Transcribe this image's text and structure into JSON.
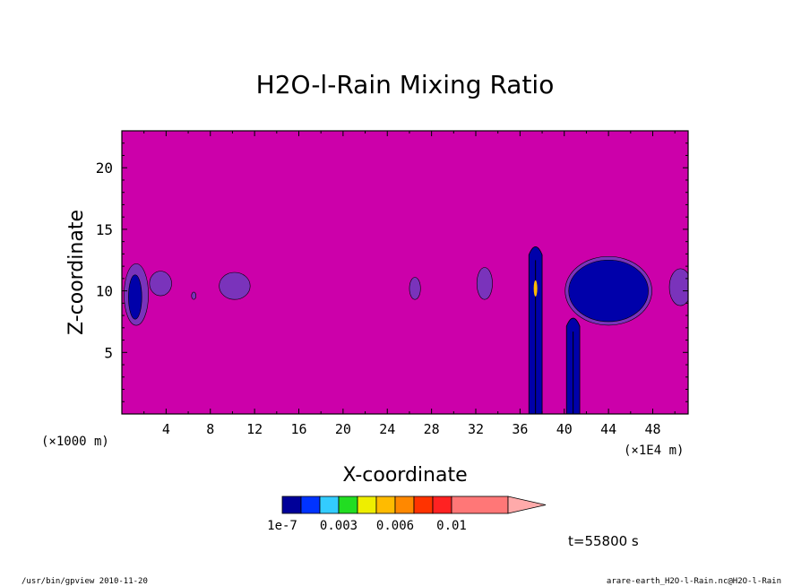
{
  "chart_data": {
    "type": "heatmap",
    "title": "H2O-l-Rain Mixing Ratio",
    "xlabel": "X-coordinate",
    "ylabel": "Z-coordinate",
    "x_unit_left": "(×1000 m)",
    "x_unit_right": "(×1E4 m)",
    "x_ticks": [
      4,
      8,
      12,
      16,
      20,
      24,
      28,
      32,
      36,
      40,
      44,
      48
    ],
    "x_ticks_labels": [
      "4",
      "8",
      "12",
      "16",
      "20",
      "24",
      "28",
      "32",
      "36",
      "40",
      "44",
      "48"
    ],
    "y_ticks": [
      5,
      10,
      15,
      20
    ],
    "y_ticks_labels": [
      "5",
      "10",
      "15",
      "20"
    ],
    "xlim": [
      0,
      51.2
    ],
    "ylim": [
      0,
      23
    ],
    "background_color": "#cc00aa",
    "colorbar": {
      "levels": [
        1e-07,
        0.001,
        0.002,
        0.003,
        0.004,
        0.005,
        0.006,
        0.007,
        0.008,
        0.01
      ],
      "colors": [
        "#000099",
        "#0033ff",
        "#33ccff",
        "#22dd22",
        "#eeee00",
        "#ffbb00",
        "#ff8800",
        "#ff3300",
        "#ff2222",
        "#ff7777",
        "#ffaaaa"
      ],
      "labels": [
        "1e-7",
        "0.003",
        "0.006",
        "0.01"
      ],
      "label_values": [
        1e-07,
        0.003,
        0.006,
        0.01
      ],
      "extend": "max"
    },
    "features": [
      {
        "x": 1.3,
        "z": 9.7,
        "rx": 1.1,
        "rz": 2.5,
        "level": "1e-7",
        "color": "#7a33bb"
      },
      {
        "x": 1.2,
        "z": 9.5,
        "rx": 0.6,
        "rz": 1.8,
        "level": "0.001",
        "color": "#0000aa"
      },
      {
        "x": 3.5,
        "z": 10.6,
        "rx": 1.0,
        "rz": 1.0,
        "level": "1e-7",
        "color": "#7a33bb"
      },
      {
        "x": 6.5,
        "z": 9.6,
        "rx": 0.2,
        "rz": 0.3,
        "level": "1e-7",
        "color": "#7a33bb"
      },
      {
        "x": 10.2,
        "z": 10.4,
        "rx": 1.4,
        "rz": 1.1,
        "level": "1e-7",
        "color": "#7a33bb"
      },
      {
        "x": 26.5,
        "z": 10.2,
        "rx": 0.5,
        "rz": 0.9,
        "level": "1e-7",
        "color": "#7a33bb"
      },
      {
        "x": 32.8,
        "z": 10.6,
        "rx": 0.7,
        "rz": 1.3,
        "level": "1e-7",
        "color": "#7a33bb"
      },
      {
        "x": 50.5,
        "z": 10.3,
        "rx": 1.0,
        "rz": 1.5,
        "level": "1e-7",
        "color": "#7a33bb"
      }
    ],
    "columns": [
      {
        "x": 37.4,
        "z_bottom": 0,
        "z_top": 13.8,
        "half_width": 0.6,
        "level": "0.001",
        "color": "#0000aa"
      },
      {
        "x": 40.8,
        "z_bottom": 0,
        "z_top": 8.0,
        "half_width": 0.6,
        "level": "0.001",
        "color": "#0000aa"
      }
    ],
    "anvil": {
      "x": 44.0,
      "z": 10.0,
      "rx": 3.6,
      "rz": 2.5,
      "level": "0.001",
      "color": "#0000aa"
    }
  },
  "time_label": "t=55800 s",
  "footer": {
    "left": "/usr/bin/gpview  2010-11-20",
    "right": "arare-earth_H2O-l-Rain.nc@H2O-l-Rain"
  }
}
